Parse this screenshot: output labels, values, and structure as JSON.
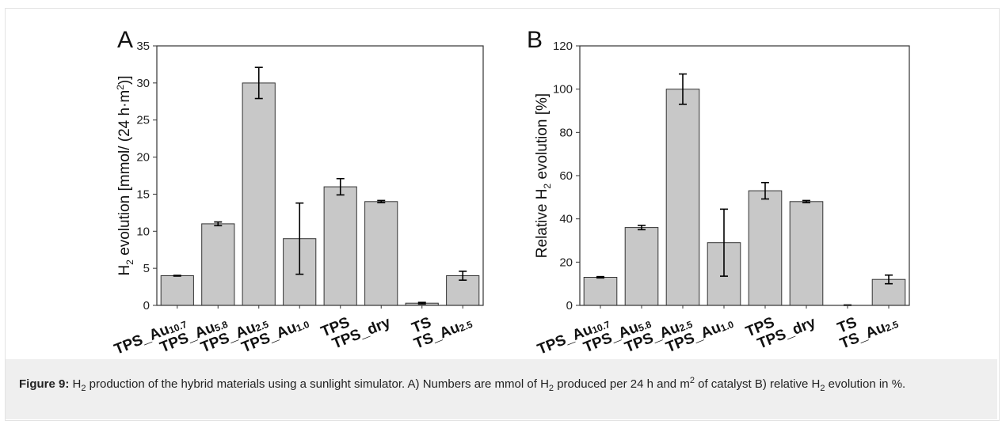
{
  "caption": {
    "label": "Figure 9:",
    "part1": " H",
    "sub1": "2",
    "part2": " production of the hybrid materials using a sunlight simulator. A) Numbers are mmol of H",
    "sub2": "2",
    "part3": " produced per 24 h and m",
    "sup1": "2",
    "part4": " of catalyst B) relative H",
    "sub3": "2",
    "part5": " evolution in %."
  },
  "chart_data": [
    {
      "type": "bar",
      "panel_label": "A",
      "categories": [
        {
          "base": "TPS_Au",
          "sub": "10.7"
        },
        {
          "base": "TPS_Au",
          "sub": "5.8"
        },
        {
          "base": "TPS_Au",
          "sub": "2.5"
        },
        {
          "base": "TPS_Au",
          "sub": "1.0"
        },
        {
          "base": "TPS",
          "sub": ""
        },
        {
          "base": "TPS_dry",
          "sub": ""
        },
        {
          "base": "TS",
          "sub": ""
        },
        {
          "base": "TS_Au",
          "sub": "2.5"
        }
      ],
      "values": [
        4.0,
        11.0,
        30.0,
        9.0,
        16.0,
        14.0,
        0.3,
        4.0
      ],
      "errors": [
        0.05,
        0.25,
        2.1,
        4.8,
        1.1,
        0.15,
        0.1,
        0.6
      ],
      "ylabel": {
        "pre": "H",
        "sub": "2",
        "mid": " evolution [mmol/ (24 h·m",
        "sup": "2",
        "post": ")]"
      },
      "ylim": [
        0,
        35
      ],
      "yticks": [
        0,
        5,
        10,
        15,
        20,
        25,
        30,
        35
      ],
      "bar_color": "#c8c8c8"
    },
    {
      "type": "bar",
      "panel_label": "B",
      "categories": [
        {
          "base": "TPS_Au",
          "sub": "10.7"
        },
        {
          "base": "TPS_Au",
          "sub": "5.8"
        },
        {
          "base": "TPS_Au",
          "sub": "2.5"
        },
        {
          "base": "TPS_Au",
          "sub": "1.0"
        },
        {
          "base": "TPS",
          "sub": ""
        },
        {
          "base": "TPS_dry",
          "sub": ""
        },
        {
          "base": "TS",
          "sub": ""
        },
        {
          "base": "TS_Au",
          "sub": "2.5"
        }
      ],
      "values": [
        13.0,
        36.0,
        100.0,
        29.0,
        53.0,
        48.0,
        0.0,
        12.0
      ],
      "errors": [
        0.3,
        1.0,
        7.0,
        15.5,
        3.8,
        0.5,
        0.2,
        2.0
      ],
      "ylabel": {
        "pre": "Relative H",
        "sub": "2",
        "mid": " evolution [%]",
        "sup": "",
        "post": ""
      },
      "ylim": [
        0,
        120
      ],
      "yticks": [
        0,
        20,
        40,
        60,
        80,
        100,
        120
      ],
      "bar_color": "#c8c8c8"
    }
  ]
}
